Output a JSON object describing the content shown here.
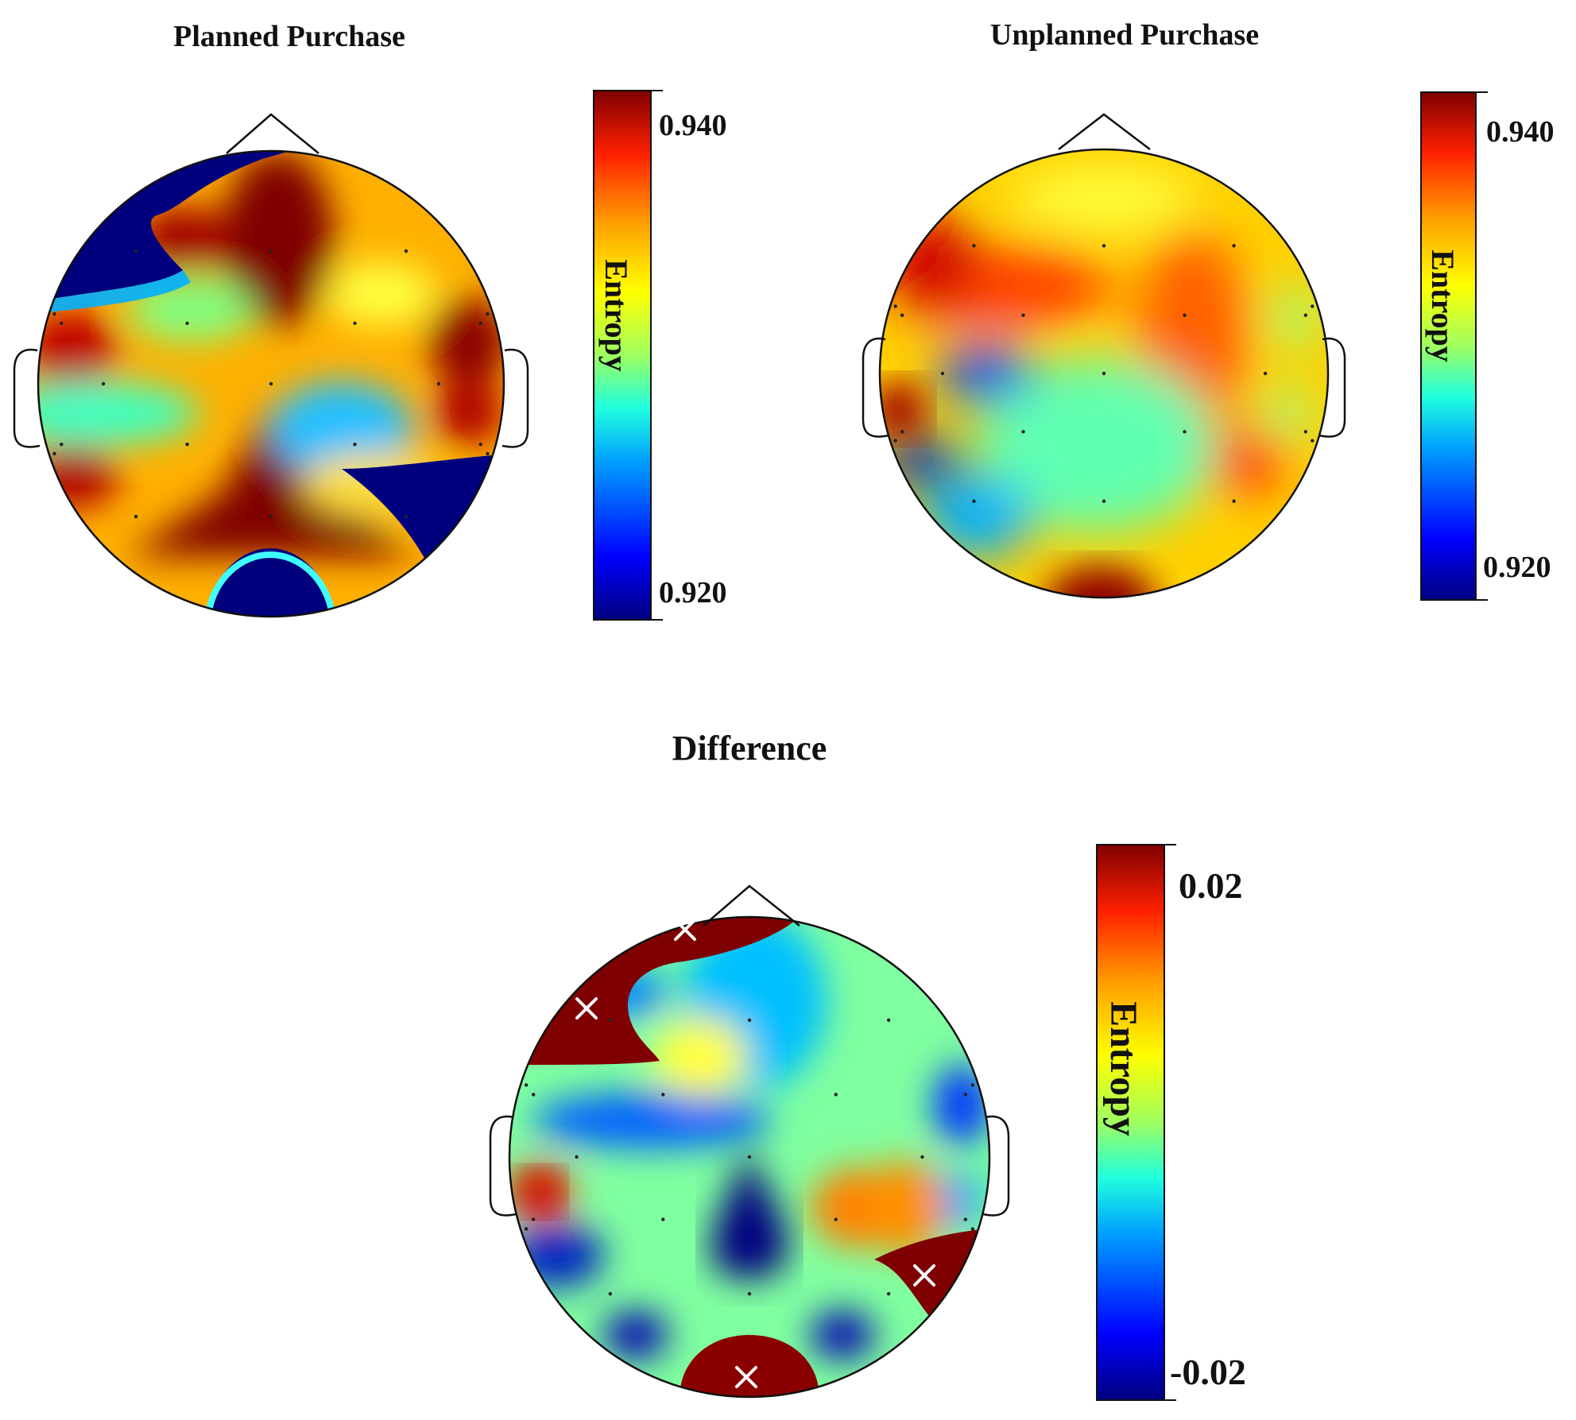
{
  "figure": {
    "panels": [
      {
        "id": "planned",
        "title": "Planned Purchase",
        "colorbar": {
          "label": "Entropy",
          "max_label": "0.940",
          "min_label": "0.920",
          "max": 0.94,
          "min": 0.92
        },
        "significant_markers": 0
      },
      {
        "id": "unplanned",
        "title": "Unplanned Purchase",
        "colorbar": {
          "label": "Entropy",
          "max_label": "0.940",
          "min_label": "0.920",
          "max": 0.94,
          "min": 0.92
        },
        "significant_markers": 0
      },
      {
        "id": "difference",
        "title": "Difference",
        "colorbar": {
          "label": "Entropy",
          "max_label": "0.02",
          "min_label": "-0.02",
          "max": 0.02,
          "min": -0.02
        },
        "significant_markers": 4
      }
    ],
    "colormap": [
      "#00007f",
      "#0000ff",
      "#00a0ff",
      "#20ffdf",
      "#9fff60",
      "#ffff00",
      "#ff9f00",
      "#ff2000",
      "#7f0000"
    ]
  }
}
